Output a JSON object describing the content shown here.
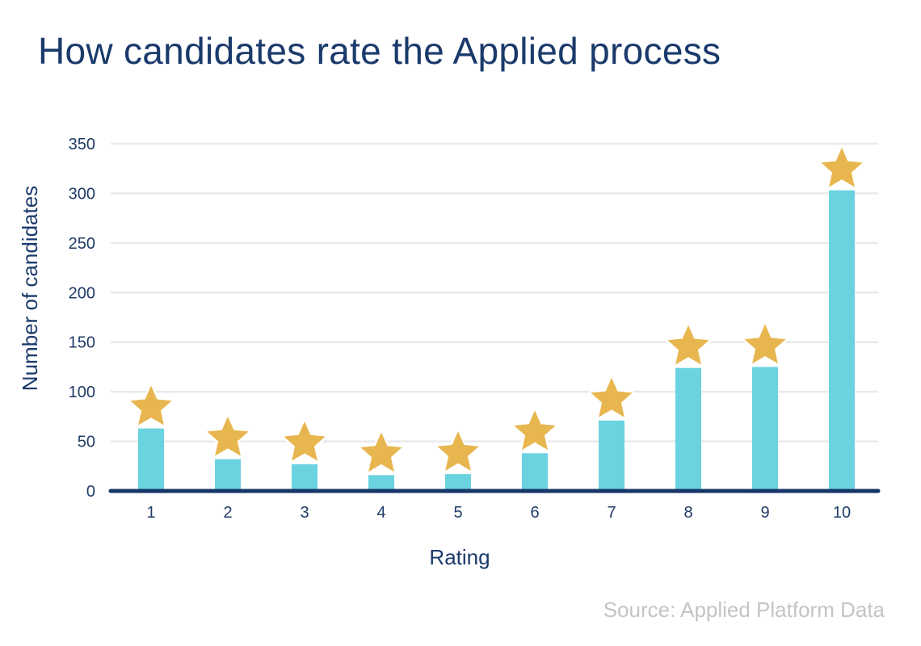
{
  "title": "How candidates rate the Applied process",
  "source": "Source: Applied Platform Data",
  "colors": {
    "title": "#1a3a6b",
    "bar": "#6bd3e0",
    "star": "#e8b64f",
    "axis": "#173668",
    "grid": "#e9e9e9",
    "tick_text": "#1f3b66",
    "source": "#c4c4c4"
  },
  "chart_data": {
    "type": "bar",
    "title": "How candidates rate the Applied process",
    "xlabel": "Rating",
    "ylabel": "Number of candidates",
    "categories": [
      "1",
      "2",
      "3",
      "4",
      "5",
      "6",
      "7",
      "8",
      "9",
      "10"
    ],
    "values": [
      63,
      32,
      27,
      16,
      17,
      38,
      71,
      124,
      125,
      303
    ],
    "ylim": [
      0,
      350
    ],
    "yticks": [
      0,
      50,
      100,
      150,
      200,
      250,
      300,
      350
    ],
    "grid": true,
    "marker": "star-icon"
  }
}
